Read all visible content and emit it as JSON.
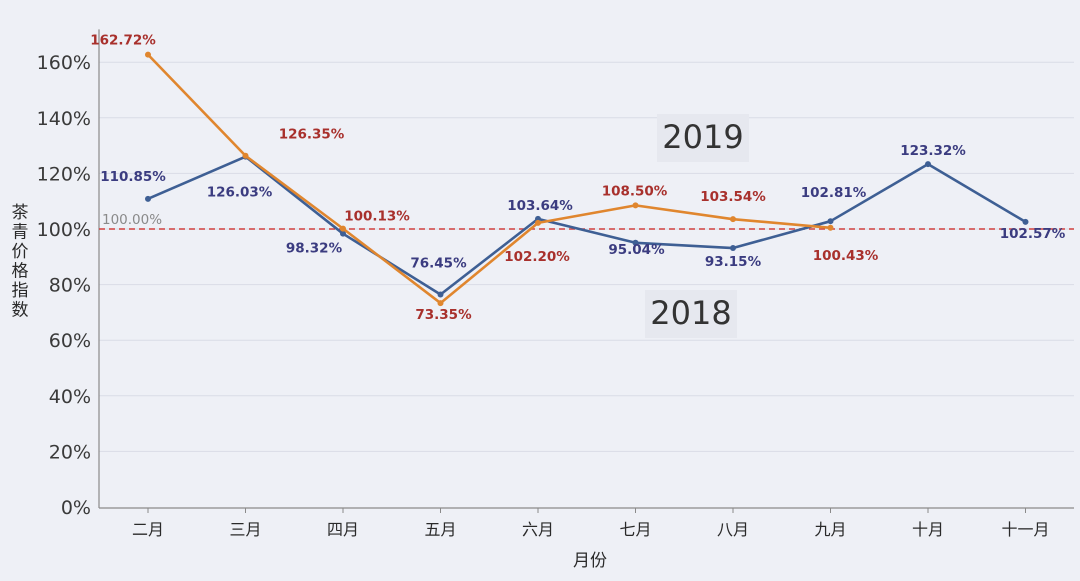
{
  "chart_data": {
    "type": "line",
    "title": "",
    "xlabel": "月份",
    "ylabel": "茶青价格指数",
    "categories": [
      "二月",
      "三月",
      "四月",
      "五月",
      "六月",
      "七月",
      "八月",
      "九月",
      "十月",
      "十一月"
    ],
    "ylim": [
      0,
      170
    ],
    "yticks": [
      0,
      20,
      40,
      60,
      80,
      100,
      120,
      140,
      160
    ],
    "ytick_labels": [
      "0%",
      "20%",
      "40%",
      "60%",
      "80%",
      "100%",
      "120%",
      "140%",
      "160%"
    ],
    "grid": true,
    "reference_line": {
      "value": 100,
      "label": "100.00%",
      "color": "#d0413f"
    },
    "series": [
      {
        "name": "2018",
        "color": "#3e5f94",
        "label_color": "#3b3c80",
        "values": [
          110.85,
          126.03,
          98.32,
          76.45,
          103.64,
          95.04,
          93.15,
          102.81,
          123.32,
          102.57
        ],
        "labels": [
          "110.85%",
          "126.03%",
          "98.32%",
          "76.45%",
          "103.64%",
          "95.04%",
          "93.15%",
          "102.81%",
          "123.32%",
          "102.57%"
        ]
      },
      {
        "name": "2019",
        "color": "#e0862e",
        "label_color": "#a8302c",
        "values": [
          162.72,
          126.35,
          100.13,
          73.35,
          102.2,
          108.5,
          103.54,
          100.43,
          null,
          null
        ],
        "labels": [
          "162.72%",
          "126.35%",
          "100.13%",
          "73.35%",
          "102.20%",
          "108.50%",
          "103.54%",
          "100.43%",
          "",
          ""
        ]
      }
    ]
  }
}
